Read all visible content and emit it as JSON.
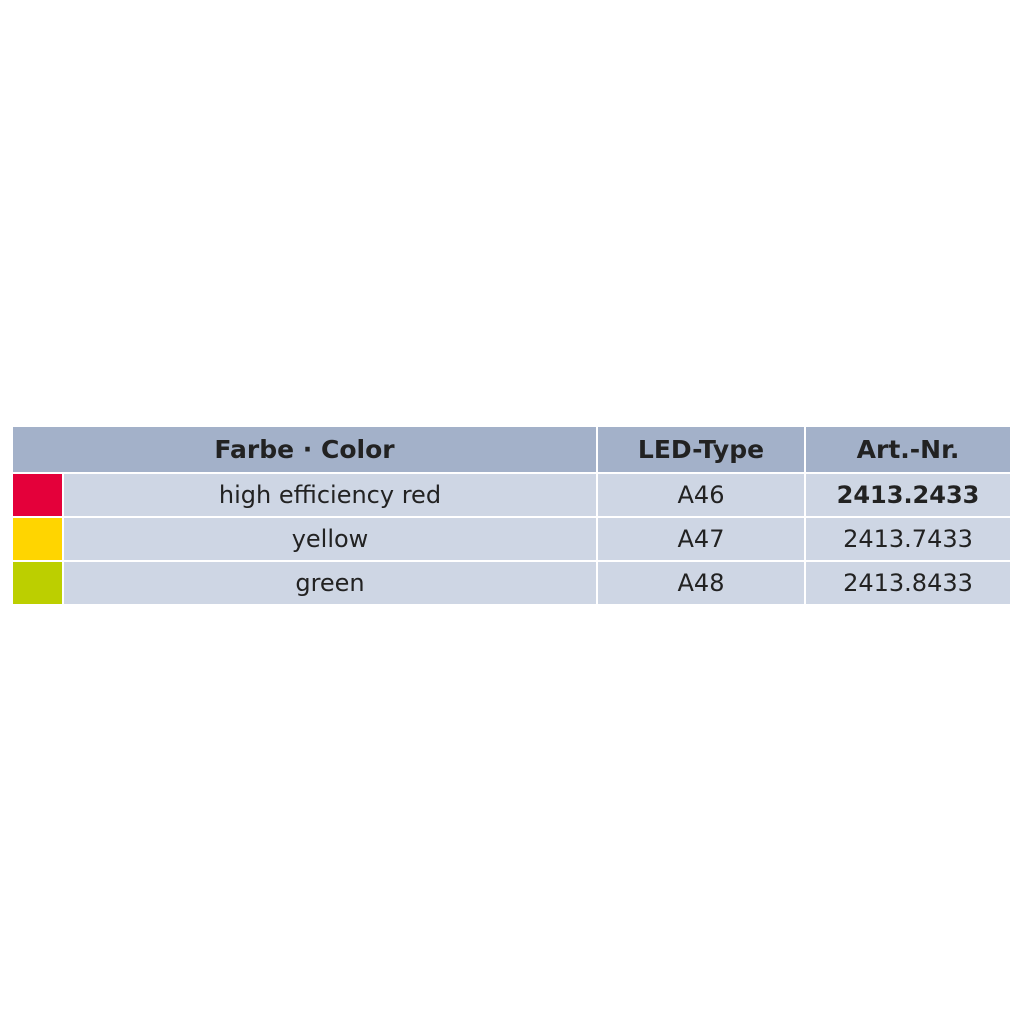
{
  "table": {
    "headers": [
      "Farbe · Color",
      "LED-Type",
      "Art.-Nr."
    ],
    "rows": [
      {
        "color_name": "high efficiency red",
        "swatch": "#e4003a",
        "led_type": "A46",
        "art_nr": "2413.2433",
        "art_nr_bold": true
      },
      {
        "color_name": "yellow",
        "swatch": "#ffd500",
        "led_type": "A47",
        "art_nr": "2413.7433",
        "art_nr_bold": false
      },
      {
        "color_name": "green",
        "swatch": "#bccf00",
        "led_type": "A48",
        "art_nr": "2413.8433",
        "art_nr_bold": false
      }
    ]
  },
  "colors": {
    "header_bg": "#a3b1c9",
    "row_bg": "#ced6e4"
  }
}
